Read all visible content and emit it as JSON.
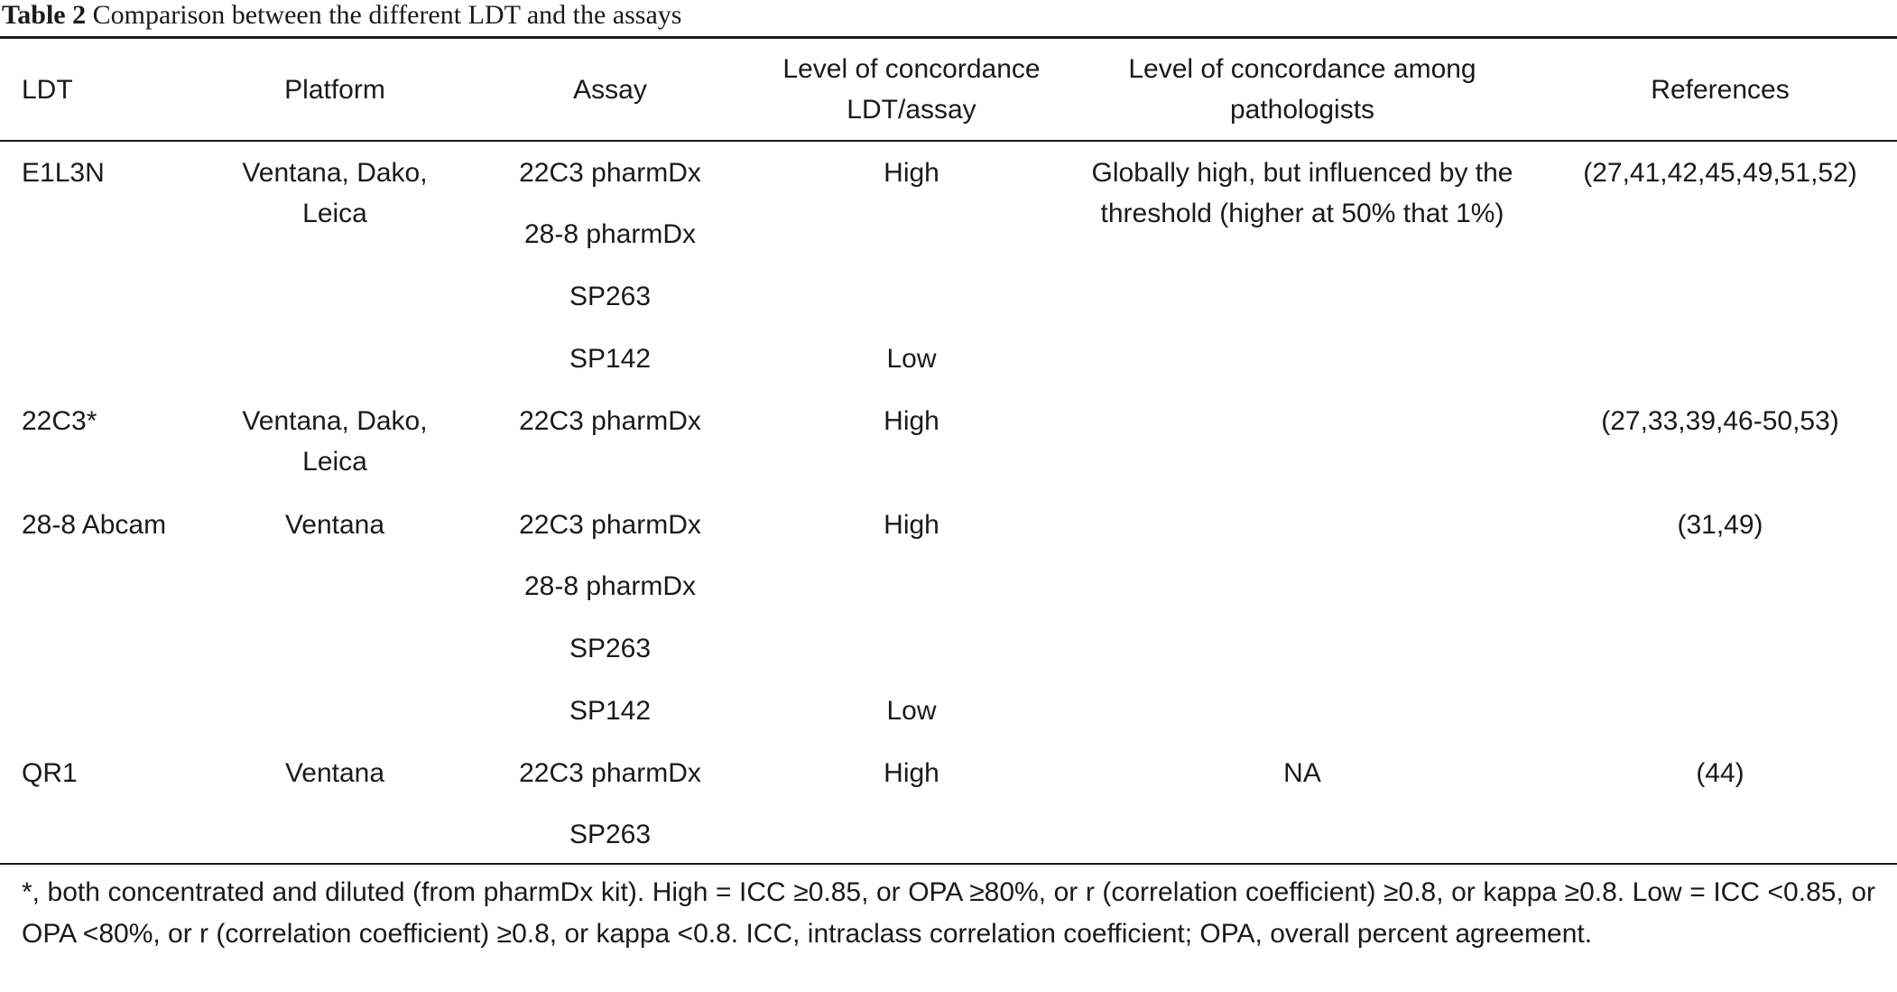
{
  "caption": {
    "label": "Table 2",
    "text": " Comparison between the different LDT and the assays"
  },
  "headers": {
    "ldt": "LDT",
    "platform": "Platform",
    "assay": "Assay",
    "concordance_ldt_assay": [
      "Level of concordance",
      "LDT/assay"
    ],
    "concordance_pathologists": [
      "Level of concordance among",
      "pathologists"
    ],
    "references": "References"
  },
  "rows": [
    {
      "ldt": "E1L3N",
      "platform": [
        "Ventana, Dako,",
        "Leica"
      ],
      "assays": [
        "22C3 pharmDx",
        "28-8 pharmDx",
        "SP263",
        "SP142"
      ],
      "concordance": [
        "High",
        "",
        "",
        "Low"
      ],
      "pathologists": [
        "Globally high, but influenced by the",
        "threshold (higher at 50% that 1%)"
      ],
      "references": "(27,41,42,45,49,51,52)"
    },
    {
      "ldt": "22C3*",
      "platform": [
        "Ventana, Dako,",
        "Leica"
      ],
      "assays": [
        "22C3 pharmDx"
      ],
      "concordance": [
        "High"
      ],
      "pathologists": [],
      "references": "(27,33,39,46-50,53)"
    },
    {
      "ldt": "28-8 Abcam",
      "platform": [
        "Ventana"
      ],
      "assays": [
        "22C3 pharmDx",
        "28-8 pharmDx",
        "SP263",
        "SP142"
      ],
      "concordance": [
        "High",
        "",
        "",
        "Low"
      ],
      "pathologists": [],
      "references": "(31,49)"
    },
    {
      "ldt": "QR1",
      "platform": [
        "Ventana"
      ],
      "assays": [
        "22C3 pharmDx",
        "SP263"
      ],
      "concordance": [
        "High",
        ""
      ],
      "pathologists": [
        "NA"
      ],
      "references": "(44)"
    }
  ],
  "footnote": "*, both concentrated and diluted (from pharmDx kit). High = ICC ≥0.85, or OPA ≥80%, or r (correlation coefficient) ≥0.8, or kappa ≥0.8. Low = ICC <0.85, or OPA <80%, or r (correlation coefficient) ≥0.8, or kappa <0.8. ICC, intraclass correlation coefficient; OPA, overall percent agreement."
}
